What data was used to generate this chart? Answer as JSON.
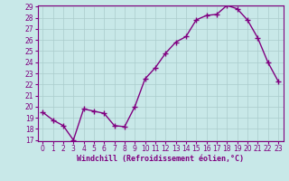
{
  "x": [
    0,
    1,
    2,
    3,
    4,
    5,
    6,
    7,
    8,
    9,
    10,
    11,
    12,
    13,
    14,
    15,
    16,
    17,
    18,
    19,
    20,
    21,
    22,
    23
  ],
  "y": [
    19.5,
    18.8,
    18.3,
    17.0,
    19.8,
    19.6,
    19.4,
    18.3,
    18.2,
    20.0,
    22.5,
    23.5,
    24.8,
    25.8,
    26.3,
    27.8,
    28.2,
    28.3,
    29.1,
    28.8,
    27.8,
    26.2,
    24.0,
    22.3
  ],
  "line_color": "#800080",
  "marker": "+",
  "marker_color": "#800080",
  "bg_color": "#c8e8e8",
  "grid_color": "#aacccc",
  "xlabel": "Windchill (Refroidissement éolien,°C)",
  "xlabel_color": "#800080",
  "tick_color": "#800080",
  "spine_color": "#800080",
  "ylim_min": 17,
  "ylim_max": 29,
  "xlim_min": -0.5,
  "xlim_max": 23.5,
  "yticks": [
    17,
    18,
    19,
    20,
    21,
    22,
    23,
    24,
    25,
    26,
    27,
    28,
    29
  ],
  "xticks": [
    0,
    1,
    2,
    3,
    4,
    5,
    6,
    7,
    8,
    9,
    10,
    11,
    12,
    13,
    14,
    15,
    16,
    17,
    18,
    19,
    20,
    21,
    22,
    23
  ],
  "tick_fontsize": 5.5,
  "xlabel_fontsize": 6,
  "linewidth": 1.0,
  "markersize": 4,
  "markeredgewidth": 1
}
